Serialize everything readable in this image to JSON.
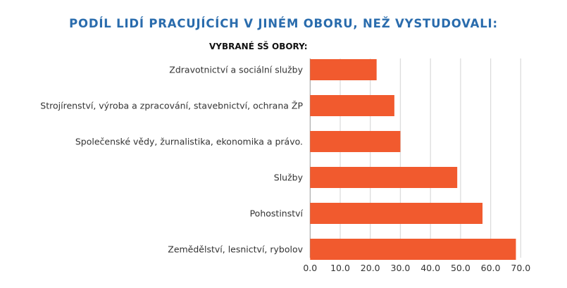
{
  "chart_data": {
    "type": "bar",
    "orientation": "horizontal",
    "title": "PODÍL LIDÍ PRACUJÍCÍCH V JINÉM OBORU, NEŽ VYSTUDOVALI:",
    "subtitle": "VYBRANÉ SŠ OBORY:",
    "categories": [
      "Zdravotnictví a sociální služby",
      "Strojírenství, výroba a zpracování, stavebnictví, ochrana ŽP",
      "Společenské vědy, žurnalistika, ekonomika a právo.",
      "Služby",
      "Pohostinství",
      "Zemědělství, lesnictví, rybolov"
    ],
    "values": [
      22.1,
      28.0,
      30.0,
      48.9,
      57.3,
      68.4
    ],
    "xlim": [
      0,
      70
    ],
    "ticks": [
      "0.0",
      "10.0",
      "20.0",
      "30.0",
      "40.0",
      "50.0",
      "60.0",
      "70.0"
    ],
    "grid": true,
    "bar_color": "#f15a2e",
    "title_color": "#2a6cad"
  }
}
